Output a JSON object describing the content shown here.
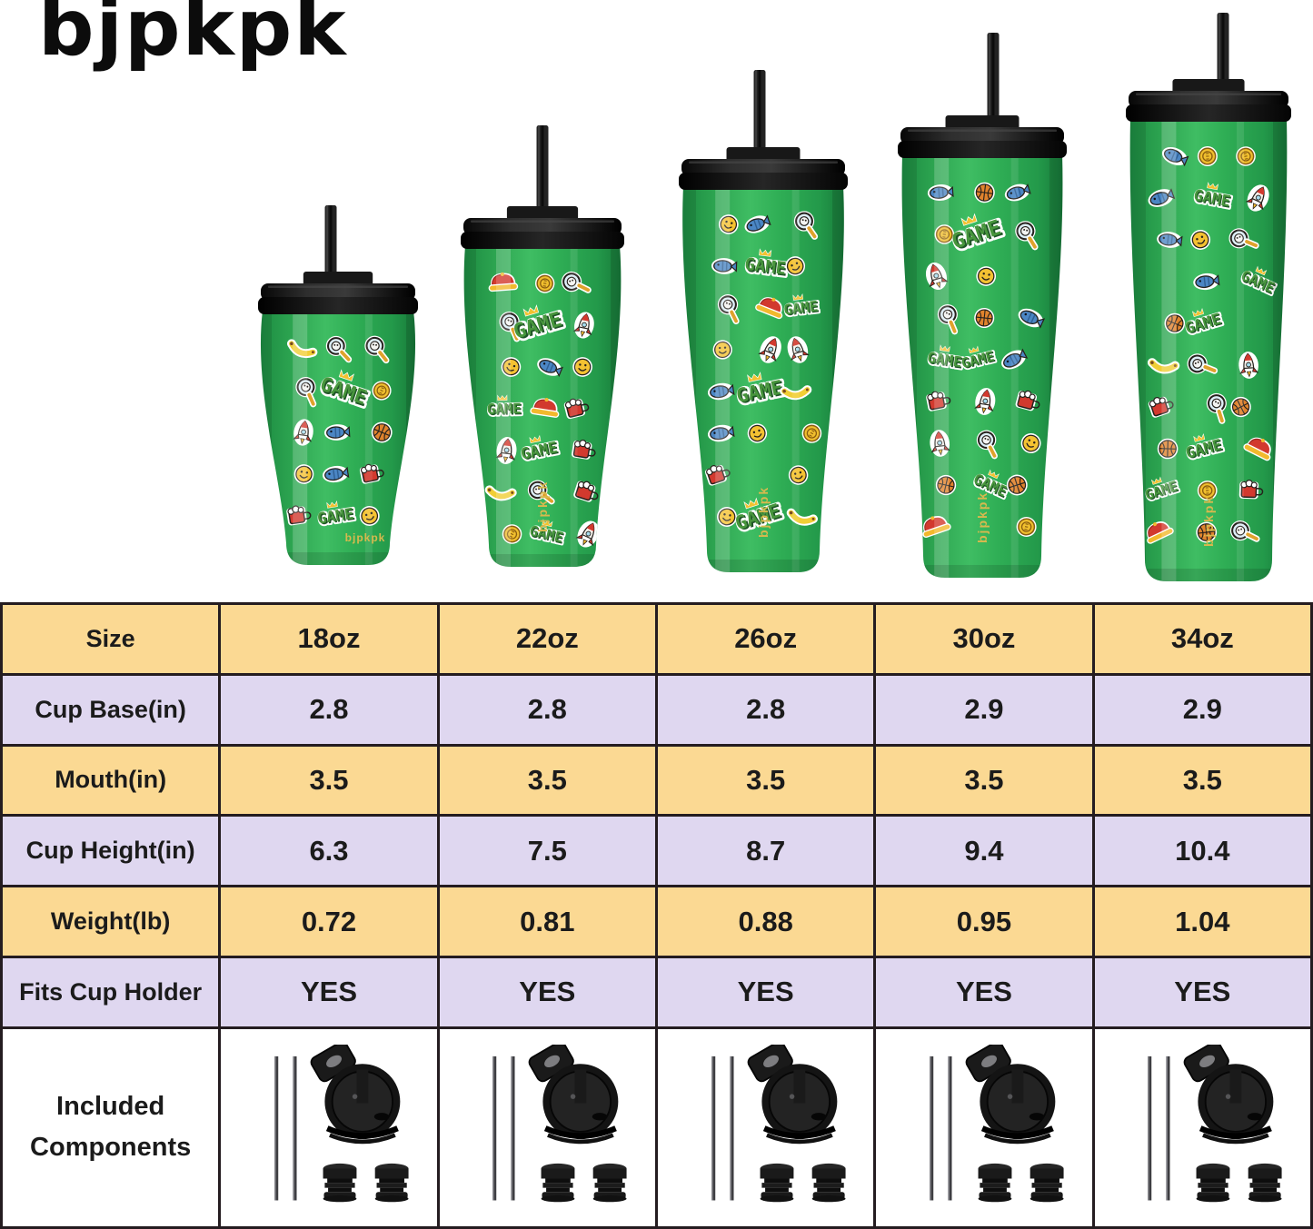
{
  "brand": {
    "logo": "bjpkpk"
  },
  "hero": {
    "brand_mark": "bjpkpk",
    "cup_color": "#2fae55",
    "lid_color": "#141414",
    "pattern_theme": "green game-sticker print: pixel GAME word, basketballs, rockets, smileys, coins, bananas, fish, red caps, magnifiers, mugs",
    "tumblers": [
      {
        "id": "18oz",
        "label": "18oz"
      },
      {
        "id": "22oz",
        "label": "22oz"
      },
      {
        "id": "26oz",
        "label": "26oz"
      },
      {
        "id": "30oz",
        "label": "30oz"
      },
      {
        "id": "34oz",
        "label": "34oz"
      }
    ]
  },
  "table": {
    "rows": [
      {
        "key": "size",
        "label": "Size",
        "values": [
          "18oz",
          "22oz",
          "26oz",
          "30oz",
          "34oz"
        ]
      },
      {
        "key": "cup-base",
        "label": "Cup Base(in)",
        "values": [
          "2.8",
          "2.8",
          "2.8",
          "2.9",
          "2.9"
        ]
      },
      {
        "key": "mouth",
        "label": "Mouth(in)",
        "values": [
          "3.5",
          "3.5",
          "3.5",
          "3.5",
          "3.5"
        ]
      },
      {
        "key": "cup-height",
        "label": "Cup Height(in)",
        "values": [
          "6.3",
          "7.5",
          "8.7",
          "9.4",
          "10.4"
        ]
      },
      {
        "key": "weight",
        "label": "Weight(lb)",
        "values": [
          "0.72",
          "0.81",
          "0.88",
          "0.95",
          "1.04"
        ]
      },
      {
        "key": "fits-cup-holder",
        "label": "Fits Cup Holder",
        "values": [
          "YES",
          "YES",
          "YES",
          "YES",
          "YES"
        ]
      }
    ],
    "included": {
      "label_lines": [
        "Included",
        "Components"
      ],
      "components": [
        "2 metal straws",
        "flip-top lid",
        "2 straw stoppers"
      ]
    }
  },
  "chart_data": {
    "type": "table",
    "title": "BJPKPK tumbler size comparison",
    "columns": [
      "Size",
      "18oz",
      "22oz",
      "26oz",
      "30oz",
      "34oz"
    ],
    "rows": [
      [
        "Size",
        "18oz",
        "22oz",
        "26oz",
        "30oz",
        "34oz"
      ],
      [
        "Cup Base(in)",
        2.8,
        2.8,
        2.8,
        2.9,
        2.9
      ],
      [
        "Mouth(in)",
        3.5,
        3.5,
        3.5,
        3.5,
        3.5
      ],
      [
        "Cup Height(in)",
        6.3,
        7.5,
        8.7,
        9.4,
        10.4
      ],
      [
        "Weight(lb)",
        0.72,
        0.81,
        0.88,
        0.95,
        1.04
      ],
      [
        "Fits Cup Holder",
        "YES",
        "YES",
        "YES",
        "YES",
        "YES"
      ],
      [
        "Included Components",
        "2 straws + flip lid + 2 stoppers",
        "2 straws + flip lid + 2 stoppers",
        "2 straws + flip lid + 2 stoppers",
        "2 straws + flip lid + 2 stoppers",
        "2 straws + flip lid + 2 stoppers"
      ]
    ]
  },
  "colors": {
    "row_yellow": "#fbd993",
    "row_lavender": "#dfd7f0",
    "table_border": "#241c20",
    "text": "#1b1b1b",
    "cup_green": "#2fae55",
    "background": "#ffffff"
  }
}
